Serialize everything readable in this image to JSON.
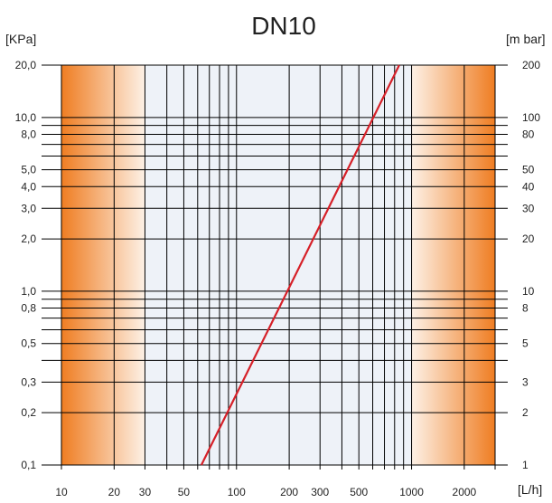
{
  "chart_data": {
    "type": "line",
    "title": "DN10",
    "x_unit": "[L/h]",
    "y_left_unit": "[KPa]",
    "y_right_unit": "[m bar]",
    "x_scale": "log",
    "y_scale": "log",
    "xlim": [
      10,
      3000
    ],
    "ylim": [
      0.1,
      20
    ],
    "x_tick_values": [
      10,
      20,
      30,
      50,
      100,
      200,
      300,
      500,
      1000,
      2000
    ],
    "x_tick_labels": [
      "10",
      "20",
      "30",
      "50",
      "100",
      "200",
      "300",
      "500",
      "1000",
      "2000"
    ],
    "y_left_tick_values": [
      0.1,
      0.2,
      0.3,
      0.5,
      0.8,
      1,
      2,
      3,
      4,
      5,
      8,
      10,
      20
    ],
    "y_left_tick_labels": [
      "0,1",
      "0,2",
      "0,3",
      "0,5",
      "0,8",
      "1,0",
      "2,0",
      "3,0",
      "4,0",
      "5,0",
      "8,0",
      "10,0",
      "20,0"
    ],
    "y_right_tick_labels": [
      "1",
      "2",
      "3",
      "5",
      "8",
      "10",
      "20",
      "30",
      "40",
      "50",
      "80",
      "100",
      "200"
    ],
    "x_grid": [
      10,
      20,
      30,
      40,
      50,
      60,
      70,
      80,
      90,
      100,
      200,
      300,
      400,
      500,
      600,
      700,
      800,
      900,
      1000,
      2000,
      3000
    ],
    "y_grid": [
      0.1,
      0.2,
      0.3,
      0.4,
      0.5,
      0.6,
      0.7,
      0.8,
      0.9,
      1,
      2,
      3,
      4,
      5,
      6,
      7,
      8,
      9,
      10,
      20
    ],
    "shaded_x_ranges": [
      [
        10,
        30
      ],
      [
        1000,
        3000
      ]
    ],
    "grid": true,
    "series": [
      {
        "x": [
          63,
          850
        ],
        "y": [
          0.1,
          20
        ]
      }
    ],
    "colors": {
      "line": "#d62028",
      "shade_dark": "#ef7d22",
      "shade_light": "#fdf1e6",
      "band_light": "#eef2f8",
      "grid": "#000000"
    }
  }
}
